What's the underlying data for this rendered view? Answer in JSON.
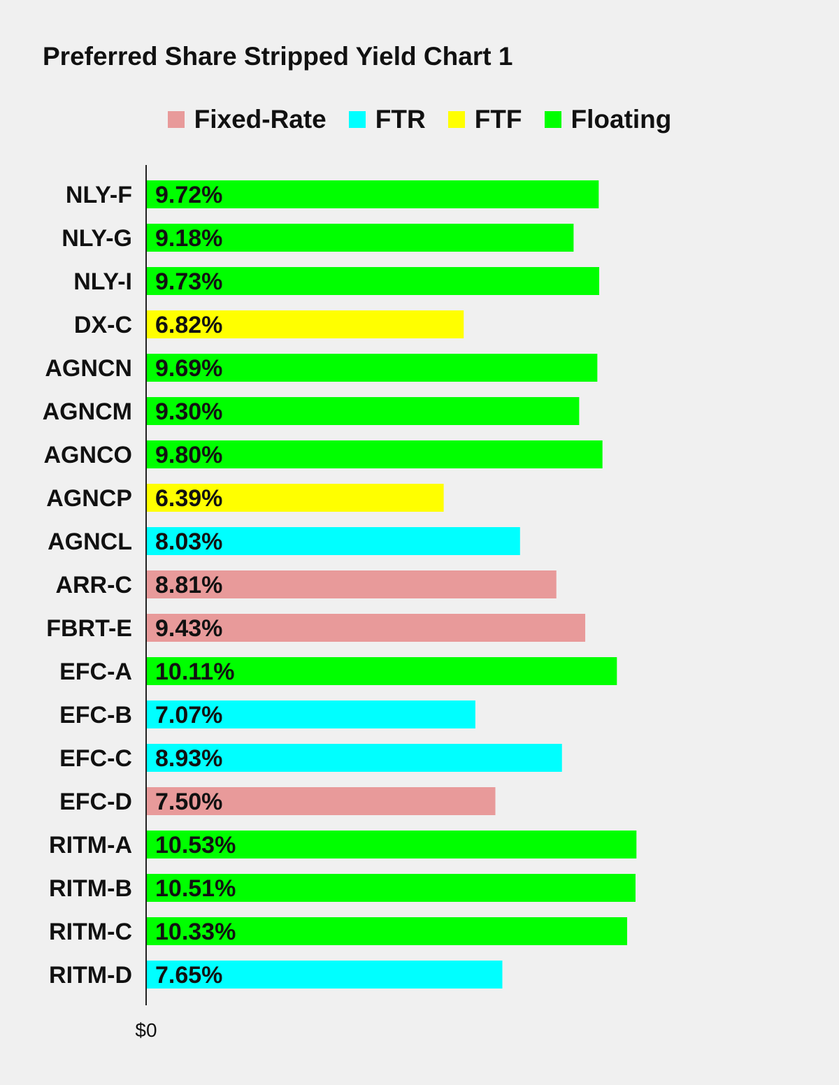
{
  "chart_data": {
    "type": "bar",
    "orientation": "horizontal",
    "title": "Preferred Share Stripped Yield Chart 1",
    "xlabel": "",
    "ylabel": "",
    "x_tick_labels": [
      "$0"
    ],
    "grid": false,
    "legend_position": "top-center",
    "legend": [
      {
        "name": "Fixed-Rate",
        "color": "#e89a9a"
      },
      {
        "name": "FTR",
        "color": "#00ffff"
      },
      {
        "name": "FTF",
        "color": "#ffff00"
      },
      {
        "name": "Floating",
        "color": "#00ff00"
      }
    ],
    "bars": [
      {
        "category": "NLY-F",
        "value": 9.72,
        "label": "9.72%",
        "type": "Floating"
      },
      {
        "category": "NLY-G",
        "value": 9.18,
        "label": "9.18%",
        "type": "Floating"
      },
      {
        "category": "NLY-I",
        "value": 9.73,
        "label": "9.73%",
        "type": "Floating"
      },
      {
        "category": "DX-C",
        "value": 6.82,
        "label": "6.82%",
        "type": "FTF"
      },
      {
        "category": "AGNCN",
        "value": 9.69,
        "label": "9.69%",
        "type": "Floating"
      },
      {
        "category": "AGNCM",
        "value": 9.3,
        "label": "9.30%",
        "type": "Floating"
      },
      {
        "category": "AGNCO",
        "value": 9.8,
        "label": "9.80%",
        "type": "Floating"
      },
      {
        "category": "AGNCP",
        "value": 6.39,
        "label": "6.39%",
        "type": "FTF"
      },
      {
        "category": "AGNCL",
        "value": 8.03,
        "label": "8.03%",
        "type": "FTR"
      },
      {
        "category": "ARR-C",
        "value": 8.81,
        "label": "8.81%",
        "type": "Fixed-Rate"
      },
      {
        "category": "FBRT-E",
        "value": 9.43,
        "label": "9.43%",
        "type": "Fixed-Rate"
      },
      {
        "category": "EFC-A",
        "value": 10.11,
        "label": "10.11%",
        "type": "Floating"
      },
      {
        "category": "EFC-B",
        "value": 7.07,
        "label": "7.07%",
        "type": "FTR"
      },
      {
        "category": "EFC-C",
        "value": 8.93,
        "label": "8.93%",
        "type": "FTR"
      },
      {
        "category": "EFC-D",
        "value": 7.5,
        "label": "7.50%",
        "type": "Fixed-Rate"
      },
      {
        "category": "RITM-A",
        "value": 10.53,
        "label": "10.53%",
        "type": "Floating"
      },
      {
        "category": "RITM-B",
        "value": 10.51,
        "label": "10.51%",
        "type": "Floating"
      },
      {
        "category": "RITM-C",
        "value": 10.33,
        "label": "10.33%",
        "type": "Floating"
      },
      {
        "category": "RITM-D",
        "value": 7.65,
        "label": "7.65%",
        "type": "FTR"
      }
    ]
  }
}
